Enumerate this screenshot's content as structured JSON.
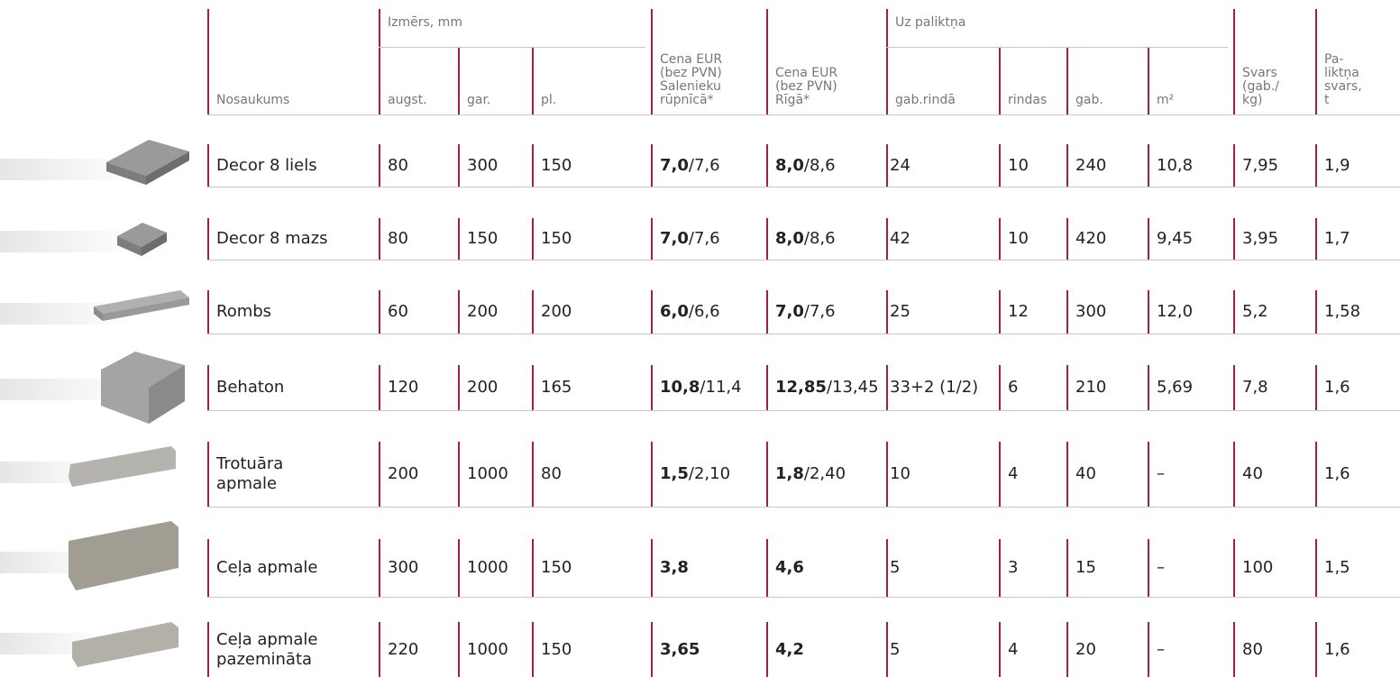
{
  "header": {
    "name": "Nosaukums",
    "size_group": "Izmērs, mm",
    "size_cols": [
      "augst.",
      "gar.",
      "pl."
    ],
    "price_factory": [
      "Cena EUR",
      "(bez PVN)",
      "Salenieku",
      "rūpnīcā*"
    ],
    "price_riga": [
      "Cena EUR",
      "(bez PVN)",
      "Rīgā*"
    ],
    "pallet_group": "Uz paliktņa",
    "pallet_cols": [
      "gab.rindā",
      "rindas",
      "gab.",
      "m²"
    ],
    "weight": [
      "Svars",
      "(gab./",
      "kg)"
    ],
    "pallet_weight": [
      "Pa-",
      "liktņa",
      "svars,",
      "t"
    ]
  },
  "rows": [
    {
      "name": [
        "Decor 8 liels"
      ],
      "size": [
        "80",
        "300",
        "150"
      ],
      "price_factory": [
        "7,0",
        "/7,6"
      ],
      "price_riga": [
        "8,0",
        "/8,6"
      ],
      "pallet": [
        "24",
        "10",
        "240",
        "10,8"
      ],
      "weight": "7,95",
      "pallet_weight": "1,9"
    },
    {
      "name": [
        "Decor 8 mazs"
      ],
      "size": [
        "80",
        "150",
        "150"
      ],
      "price_factory": [
        "7,0",
        "/7,6"
      ],
      "price_riga": [
        "8,0",
        "/8,6"
      ],
      "pallet": [
        "42",
        "10",
        "420",
        "9,45"
      ],
      "weight": "3,95",
      "pallet_weight": "1,7"
    },
    {
      "name": [
        "Rombs"
      ],
      "size": [
        "60",
        "200",
        "200"
      ],
      "price_factory": [
        "6,0",
        "/6,6"
      ],
      "price_riga": [
        "7,0",
        "/7,6"
      ],
      "pallet": [
        "25",
        "12",
        "300",
        "12,0"
      ],
      "weight": "5,2",
      "pallet_weight": "1,58"
    },
    {
      "name": [
        "Behaton"
      ],
      "size": [
        "120",
        "200",
        "165"
      ],
      "price_factory": [
        "10,8",
        "/11,4"
      ],
      "price_riga": [
        "12,85",
        "/13,45"
      ],
      "pallet": [
        "33+2 (1/2)",
        "6",
        "210",
        "5,69"
      ],
      "weight": "7,8",
      "pallet_weight": "1,6"
    },
    {
      "name": [
        "Trotuāra",
        "apmale"
      ],
      "size": [
        "200",
        "1000",
        "80"
      ],
      "price_factory": [
        "1,5",
        "/2,10"
      ],
      "price_riga": [
        "1,8",
        "/2,40"
      ],
      "pallet": [
        "10",
        "4",
        "40",
        "–"
      ],
      "weight": "40",
      "pallet_weight": "1,6"
    },
    {
      "name": [
        "Ceļa apmale"
      ],
      "size": [
        "300",
        "1000",
        "150"
      ],
      "price_factory": [
        "3,8"
      ],
      "price_riga": [
        "4,6"
      ],
      "pallet": [
        "5",
        "3",
        "15",
        "–"
      ],
      "weight": "100",
      "pallet_weight": "1,5"
    },
    {
      "name": [
        "Ceļa apmale",
        "pazemināta"
      ],
      "size": [
        "220",
        "1000",
        "150"
      ],
      "price_factory": [
        "3,65"
      ],
      "price_riga": [
        "4,2"
      ],
      "pallet": [
        "5",
        "4",
        "20",
        "–"
      ],
      "weight": "80",
      "pallet_weight": "1,6"
    }
  ]
}
